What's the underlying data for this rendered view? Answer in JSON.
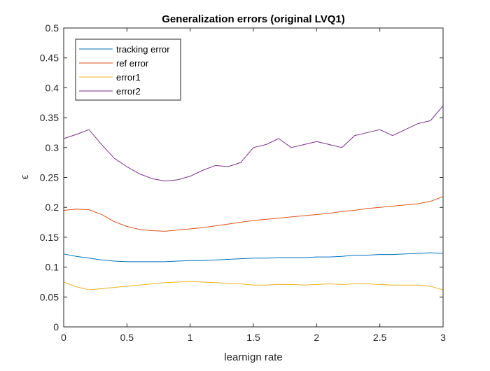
{
  "chart_data": {
    "type": "line",
    "title": "Generalization errors (original LVQ1)",
    "xlabel": "learnign rate",
    "ylabel": "ϵ",
    "xlim": [
      0,
      3
    ],
    "ylim": [
      0,
      0.5
    ],
    "xticks": [
      0,
      0.5,
      1,
      1.5,
      2,
      2.5,
      3
    ],
    "xtick_labels": [
      "0",
      "0.5",
      "1",
      "1.5",
      "2",
      "2.5",
      "3"
    ],
    "yticks": [
      0,
      0.05,
      0.1,
      0.15,
      0.2,
      0.25,
      0.3,
      0.35,
      0.4,
      0.45,
      0.5
    ],
    "ytick_labels": [
      "0",
      "0.05",
      "0.1",
      "0.15",
      "0.2",
      "0.25",
      "0.3",
      "0.35",
      "0.4",
      "0.45",
      "0.5"
    ],
    "grid": false,
    "legend_position": "top-left",
    "x": [
      0,
      0.1,
      0.2,
      0.3,
      0.4,
      0.5,
      0.6,
      0.7,
      0.8,
      0.9,
      1.0,
      1.1,
      1.2,
      1.3,
      1.4,
      1.5,
      1.6,
      1.7,
      1.8,
      1.9,
      2.0,
      2.1,
      2.2,
      2.3,
      2.4,
      2.5,
      2.6,
      2.7,
      2.8,
      2.9,
      3.0
    ],
    "series": [
      {
        "name": "tracking error",
        "color": "#0072bd",
        "values": [
          0.122,
          0.118,
          0.115,
          0.112,
          0.11,
          0.109,
          0.109,
          0.109,
          0.109,
          0.11,
          0.111,
          0.111,
          0.112,
          0.113,
          0.114,
          0.115,
          0.115,
          0.116,
          0.116,
          0.116,
          0.117,
          0.117,
          0.118,
          0.12,
          0.12,
          0.121,
          0.121,
          0.122,
          0.123,
          0.124,
          0.123
        ]
      },
      {
        "name": "ref error",
        "color": "#d95319",
        "values": [
          0.195,
          0.197,
          0.196,
          0.188,
          0.176,
          0.168,
          0.163,
          0.161,
          0.16,
          0.162,
          0.164,
          0.166,
          0.169,
          0.172,
          0.175,
          0.178,
          0.18,
          0.182,
          0.184,
          0.186,
          0.188,
          0.19,
          0.193,
          0.195,
          0.198,
          0.2,
          0.202,
          0.204,
          0.206,
          0.21,
          0.218
        ]
      },
      {
        "name": "error1",
        "color": "#edb120",
        "values": [
          0.075,
          0.067,
          0.062,
          0.064,
          0.066,
          0.068,
          0.07,
          0.072,
          0.074,
          0.075,
          0.076,
          0.075,
          0.074,
          0.073,
          0.072,
          0.07,
          0.07,
          0.071,
          0.071,
          0.07,
          0.071,
          0.072,
          0.071,
          0.072,
          0.072,
          0.071,
          0.07,
          0.07,
          0.07,
          0.068,
          0.062
        ]
      },
      {
        "name": "error2",
        "color": "#7e2f8e",
        "values": [
          0.315,
          0.322,
          0.33,
          0.305,
          0.282,
          0.268,
          0.256,
          0.248,
          0.244,
          0.246,
          0.252,
          0.262,
          0.27,
          0.268,
          0.275,
          0.3,
          0.305,
          0.315,
          0.3,
          0.305,
          0.31,
          0.305,
          0.3,
          0.32,
          0.325,
          0.33,
          0.32,
          0.33,
          0.34,
          0.345,
          0.37
        ]
      }
    ]
  }
}
